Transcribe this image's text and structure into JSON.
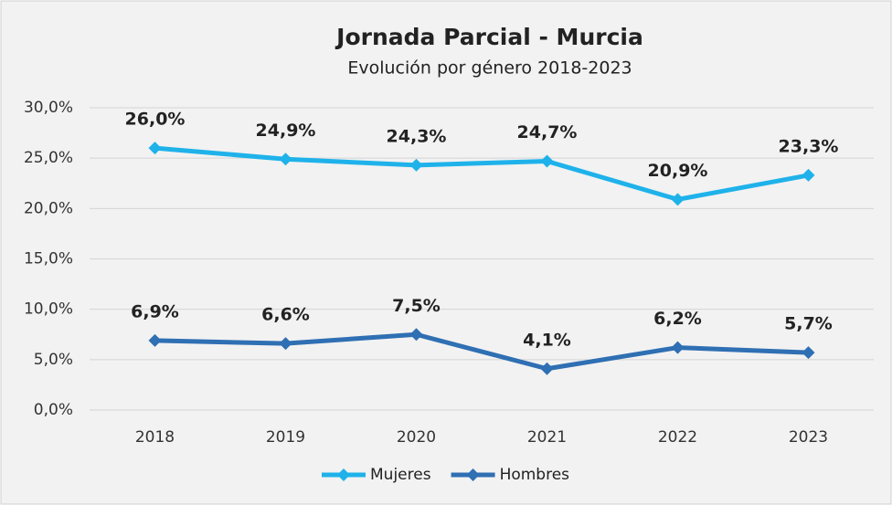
{
  "chart_data": {
    "type": "line",
    "title": "Jornada Parcial - Murcia",
    "subtitle": "Evolución por género 2018-2023",
    "categories": [
      "2018",
      "2019",
      "2020",
      "2021",
      "2022",
      "2023"
    ],
    "series": [
      {
        "name": "Mujeres",
        "color": "#1fb2ea",
        "values": [
          26.0,
          24.9,
          24.3,
          24.7,
          20.9,
          23.3
        ],
        "value_labels": [
          "26,0%",
          "24,9%",
          "24,3%",
          "24,7%",
          "20,9%",
          "23,3%"
        ]
      },
      {
        "name": "Hombres",
        "color": "#2f6fb3",
        "values": [
          6.9,
          6.6,
          7.5,
          4.1,
          6.2,
          5.7
        ],
        "value_labels": [
          "6,9%",
          "6,6%",
          "7,5%",
          "4,1%",
          "6,2%",
          "5,7%"
        ]
      }
    ],
    "ylim": [
      0,
      30
    ],
    "yticks": [
      {
        "value": 0,
        "label": "0,0%"
      },
      {
        "value": 5,
        "label": "5,0%"
      },
      {
        "value": 10,
        "label": "10,0%"
      },
      {
        "value": 15,
        "label": "15,0%"
      },
      {
        "value": 20,
        "label": "20,0%"
      },
      {
        "value": 25,
        "label": "25,0%"
      },
      {
        "value": 30,
        "label": "30,0%"
      }
    ],
    "grid": true,
    "legend": "bottom"
  }
}
